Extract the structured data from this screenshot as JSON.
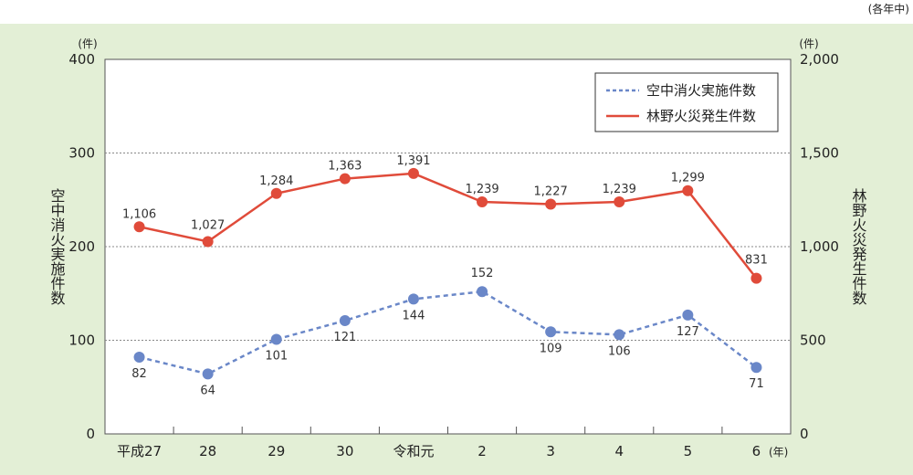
{
  "chart_data": {
    "type": "line",
    "note": "(各年中)",
    "categories": [
      "平成27",
      "28",
      "29",
      "30",
      "令和元",
      "2",
      "3",
      "4",
      "5",
      "6"
    ],
    "x_unit": "(年)",
    "left_axis": {
      "label": "空中消火実施件数",
      "unit": "(件)",
      "ticks": [
        "0",
        "100",
        "200",
        "300",
        "400"
      ],
      "range": [
        0,
        400
      ]
    },
    "right_axis": {
      "label": "林野火災発生件数",
      "unit": "(件)",
      "ticks": [
        "0",
        "500",
        "1,000",
        "1,500",
        "2,000"
      ],
      "range": [
        0,
        2000
      ]
    },
    "series": [
      {
        "name": "空中消火実施件数",
        "axis": "left",
        "style": "dashed",
        "color": "#6a87c8",
        "values": [
          82,
          64,
          101,
          121,
          144,
          152,
          109,
          106,
          127,
          71
        ],
        "labels": [
          "82",
          "64",
          "101",
          "121",
          "144",
          "152",
          "109",
          "106",
          "127",
          "71"
        ]
      },
      {
        "name": "林野火災発生件数",
        "axis": "right",
        "style": "solid",
        "color": "#e04b3a",
        "values": [
          1106,
          1027,
          1284,
          1363,
          1391,
          1239,
          1227,
          1239,
          1299,
          831
        ],
        "labels": [
          "1,106",
          "1,027",
          "1,284",
          "1,363",
          "1,391",
          "1,239",
          "1,227",
          "1,239",
          "1,299",
          "831"
        ]
      }
    ],
    "grid": true,
    "legend_position": "top-right",
    "colors": {
      "background": "#e3efd6",
      "plot": "#ffffff"
    }
  }
}
